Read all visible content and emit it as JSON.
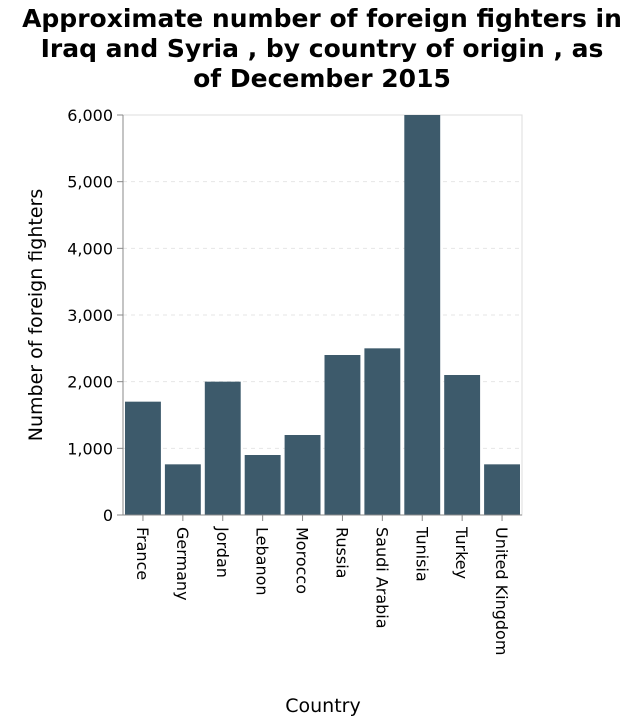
{
  "chart_data": {
    "type": "bar",
    "title_lines": [
      "Approximate number of foreign fighters in",
      "Iraq and Syria , by country of origin , as",
      "of December 2015"
    ],
    "xlabel": "Country",
    "ylabel": "Number of foreign fighters",
    "categories": [
      "France",
      "Germany",
      "Jordan",
      "Lebanon",
      "Morocco",
      "Russia",
      "Saudi Arabia",
      "Tunisia",
      "Turkey",
      "United Kingdom"
    ],
    "values": [
      1700,
      760,
      2000,
      900,
      1200,
      2400,
      2500,
      6000,
      2100,
      760
    ],
    "ylim": [
      0,
      6000
    ],
    "yticks": [
      0,
      1000,
      2000,
      3000,
      4000,
      5000,
      6000
    ],
    "ytick_labels": [
      "0",
      "1,000",
      "2,000",
      "3,000",
      "4,000",
      "5,000",
      "6,000"
    ],
    "grid": true,
    "bar_color": "#3d5a6b"
  }
}
